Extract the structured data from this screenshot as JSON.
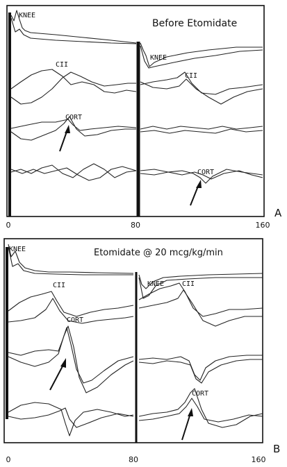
{
  "chart_data": [
    {
      "type": "line",
      "title": "Before Etomidate",
      "panel_label": "A",
      "x_ticks": [
        "0",
        "80",
        "160"
      ],
      "xlim": [
        0,
        160
      ],
      "markers": [
        {
          "text": "KNEE",
          "series": "knee-sweep1",
          "x": 10
        },
        {
          "text": "KNEE",
          "series": "knee-sweep2",
          "x": 89
        },
        {
          "text": "CII",
          "series": "cii-sweep1",
          "x": 30
        },
        {
          "text": "CII",
          "series": "cii-sweep2",
          "x": 110
        },
        {
          "text": "CORT",
          "series": "cort-sweep1",
          "x": 35
        },
        {
          "text": "CORT",
          "series": "cort-sweep2",
          "x": 115
        }
      ]
    },
    {
      "type": "line",
      "title": "Etomidate @ 20 mcg/kg/min",
      "panel_label": "B",
      "x_ticks": [
        "0",
        "80",
        "160"
      ],
      "xlim": [
        0,
        160
      ],
      "markers": [
        {
          "text": "KNEE",
          "series": "knee-sweep1",
          "x": 2
        },
        {
          "text": "KNEE",
          "series": "knee-sweep2",
          "x": 86
        },
        {
          "text": "CII",
          "series": "cii-sweep1",
          "x": 30
        },
        {
          "text": "CII",
          "series": "cii-sweep2",
          "x": 110
        },
        {
          "text": "CORT",
          "series": "cort-sweep1",
          "x": 37
        },
        {
          "text": "CORT",
          "series": "cort-sweep2",
          "x": 115
        }
      ]
    }
  ]
}
